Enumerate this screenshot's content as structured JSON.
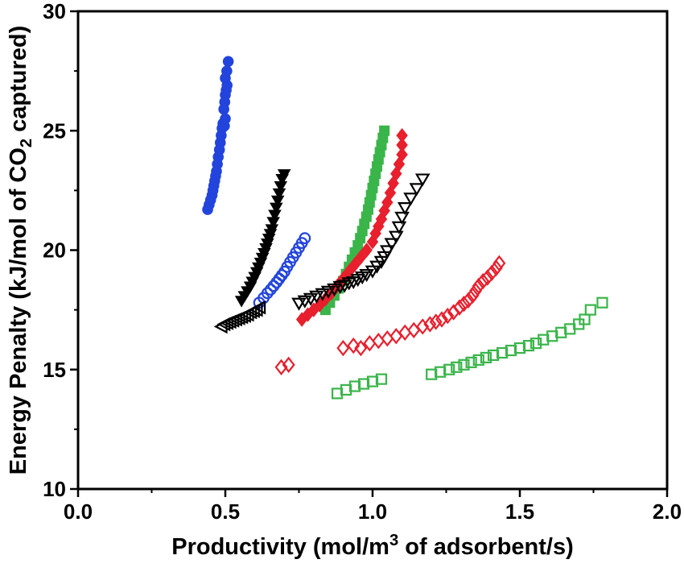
{
  "chart_data": {
    "type": "scatter",
    "title": "",
    "xlabel_parts": [
      {
        "t": "Productivity (mol/m"
      },
      {
        "t": "3",
        "sup": true
      },
      {
        "t": " of adsorbent/s)"
      }
    ],
    "ylabel_parts": [
      {
        "t": "Energy Penalty (kJ/mol of CO"
      },
      {
        "t": "2",
        "sub": true
      },
      {
        "t": " captured)"
      }
    ],
    "x_axis": {
      "min": 0.0,
      "max": 2.0,
      "major_ticks": [
        0.0,
        0.5,
        1.0,
        1.5,
        2.0
      ],
      "tick_labels": [
        "0.0",
        "0.5",
        "1.0",
        "1.5",
        "2.0"
      ],
      "minor_ticks": [
        0.25,
        0.75,
        1.25,
        1.75
      ]
    },
    "y_axis": {
      "min": 10,
      "max": 30,
      "major_ticks": [
        10,
        15,
        20,
        25,
        30
      ],
      "tick_labels": [
        "10",
        "15",
        "20",
        "25",
        "30"
      ],
      "minor_ticks": [
        12.5,
        17.5,
        22.5,
        27.5
      ]
    },
    "grid": false,
    "legend": "none",
    "frame": true,
    "colors": {
      "blue": "#2244dd",
      "green": "#3ab54a",
      "red": "#e81f2d",
      "black": "#000000"
    },
    "series": [
      {
        "name": "blue-filled-circles",
        "marker": "circle",
        "fill": "filled",
        "color_key": "blue",
        "points": [
          [
            0.44,
            21.7
          ],
          [
            0.445,
            21.9
          ],
          [
            0.45,
            22.1
          ],
          [
            0.455,
            22.3
          ],
          [
            0.458,
            22.5
          ],
          [
            0.461,
            22.7
          ],
          [
            0.464,
            22.9
          ],
          [
            0.467,
            23.1
          ],
          [
            0.47,
            23.3
          ],
          [
            0.473,
            23.6
          ],
          [
            0.476,
            23.9
          ],
          [
            0.48,
            24.2
          ],
          [
            0.483,
            24.5
          ],
          [
            0.486,
            24.8
          ],
          [
            0.489,
            25.1
          ],
          [
            0.492,
            25.3
          ],
          [
            0.497,
            25.2
          ],
          [
            0.5,
            25.5
          ],
          [
            0.495,
            25.9
          ],
          [
            0.498,
            26.2
          ],
          [
            0.5,
            26.5
          ],
          [
            0.503,
            26.7
          ],
          [
            0.506,
            26.9
          ],
          [
            0.5,
            27.2
          ],
          [
            0.505,
            27.5
          ],
          [
            0.51,
            27.9
          ]
        ]
      },
      {
        "name": "blue-open-circles",
        "marker": "circle",
        "fill": "open",
        "color_key": "blue",
        "points": [
          [
            0.615,
            17.8
          ],
          [
            0.63,
            18.0
          ],
          [
            0.643,
            18.2
          ],
          [
            0.654,
            18.35
          ],
          [
            0.664,
            18.5
          ],
          [
            0.674,
            18.65
          ],
          [
            0.683,
            18.8
          ],
          [
            0.692,
            18.95
          ],
          [
            0.701,
            19.1
          ],
          [
            0.71,
            19.3
          ],
          [
            0.72,
            19.5
          ],
          [
            0.73,
            19.7
          ],
          [
            0.74,
            19.9
          ],
          [
            0.75,
            20.1
          ],
          [
            0.76,
            20.3
          ],
          [
            0.77,
            20.5
          ]
        ]
      },
      {
        "name": "black-filled-down-triangles",
        "marker": "triangle-down",
        "fill": "filled",
        "color_key": "black",
        "points": [
          [
            0.555,
            17.9
          ],
          [
            0.565,
            18.1
          ],
          [
            0.575,
            18.3
          ],
          [
            0.585,
            18.5
          ],
          [
            0.592,
            18.7
          ],
          [
            0.6,
            18.9
          ],
          [
            0.607,
            19.1
          ],
          [
            0.613,
            19.3
          ],
          [
            0.62,
            19.5
          ],
          [
            0.626,
            19.7
          ],
          [
            0.632,
            19.9
          ],
          [
            0.638,
            20.1
          ],
          [
            0.643,
            20.3
          ],
          [
            0.648,
            20.5
          ],
          [
            0.653,
            20.7
          ],
          [
            0.658,
            20.9
          ],
          [
            0.663,
            21.2
          ],
          [
            0.668,
            21.5
          ],
          [
            0.673,
            21.8
          ],
          [
            0.678,
            22.1
          ],
          [
            0.683,
            22.4
          ],
          [
            0.688,
            22.7
          ],
          [
            0.693,
            23.0
          ],
          [
            0.7,
            23.2
          ]
        ]
      },
      {
        "name": "black-open-left-triangles",
        "marker": "triangle-left",
        "fill": "open",
        "color_key": "black",
        "points": [
          [
            0.49,
            16.8
          ],
          [
            0.5,
            16.9
          ],
          [
            0.51,
            16.95
          ],
          [
            0.52,
            17.0
          ],
          [
            0.53,
            17.05
          ],
          [
            0.54,
            17.1
          ],
          [
            0.55,
            17.15
          ],
          [
            0.56,
            17.2
          ],
          [
            0.57,
            17.25
          ],
          [
            0.58,
            17.3
          ],
          [
            0.59,
            17.4
          ],
          [
            0.6,
            17.45
          ],
          [
            0.61,
            17.5
          ],
          [
            0.62,
            17.6
          ]
        ]
      },
      {
        "name": "green-filled-squares",
        "marker": "square",
        "fill": "filled",
        "color_key": "green",
        "points": [
          [
            0.84,
            17.5
          ],
          [
            0.855,
            17.8
          ],
          [
            0.87,
            18.1
          ],
          [
            0.885,
            18.4
          ],
          [
            0.9,
            18.7
          ],
          [
            0.91,
            19.0
          ],
          [
            0.92,
            19.3
          ],
          [
            0.93,
            19.6
          ],
          [
            0.94,
            19.9
          ],
          [
            0.95,
            20.2
          ],
          [
            0.958,
            20.5
          ],
          [
            0.965,
            20.8
          ],
          [
            0.972,
            21.1
          ],
          [
            0.979,
            21.4
          ],
          [
            0.985,
            21.7
          ],
          [
            0.99,
            22.0
          ],
          [
            0.995,
            22.3
          ],
          [
            1.0,
            22.6
          ],
          [
            1.005,
            22.9
          ],
          [
            1.01,
            23.2
          ],
          [
            1.015,
            23.5
          ],
          [
            1.02,
            23.8
          ],
          [
            1.025,
            24.1
          ],
          [
            1.03,
            24.4
          ],
          [
            1.035,
            24.7
          ],
          [
            1.04,
            25.0
          ]
        ]
      },
      {
        "name": "red-filled-diamonds",
        "marker": "diamond",
        "fill": "filled",
        "color_key": "red",
        "points": [
          [
            0.76,
            17.1
          ],
          [
            0.78,
            17.3
          ],
          [
            0.8,
            17.5
          ],
          [
            0.82,
            17.7
          ],
          [
            0.84,
            17.95
          ],
          [
            0.86,
            18.2
          ],
          [
            0.88,
            18.5
          ],
          [
            0.9,
            18.8
          ],
          [
            0.92,
            19.1
          ],
          [
            0.94,
            19.4
          ],
          [
            0.96,
            19.7
          ],
          [
            0.98,
            20.0
          ],
          [
            1.0,
            20.35
          ],
          [
            1.01,
            20.7
          ],
          [
            1.02,
            21.0
          ],
          [
            1.03,
            21.3
          ],
          [
            1.04,
            21.65
          ],
          [
            1.05,
            22.0
          ],
          [
            1.06,
            22.4
          ],
          [
            1.07,
            22.8
          ],
          [
            1.08,
            23.2
          ],
          [
            1.09,
            23.6
          ],
          [
            1.1,
            24.0
          ],
          [
            1.1,
            24.4
          ],
          [
            1.1,
            24.8
          ]
        ]
      },
      {
        "name": "black-open-down-triangles",
        "marker": "triangle-down",
        "fill": "open",
        "color_key": "black",
        "points": [
          [
            0.75,
            17.8
          ],
          [
            0.77,
            17.9
          ],
          [
            0.79,
            18.0
          ],
          [
            0.81,
            18.1
          ],
          [
            0.83,
            18.2
          ],
          [
            0.85,
            18.3
          ],
          [
            0.87,
            18.4
          ],
          [
            0.89,
            18.5
          ],
          [
            0.905,
            18.55
          ],
          [
            0.92,
            18.65
          ],
          [
            0.935,
            18.7
          ],
          [
            0.95,
            18.8
          ],
          [
            0.965,
            18.9
          ],
          [
            0.98,
            19.0
          ],
          [
            1.0,
            19.15
          ],
          [
            1.015,
            19.35
          ],
          [
            1.03,
            19.55
          ],
          [
            1.04,
            19.75
          ],
          [
            1.05,
            20.0
          ],
          [
            1.065,
            20.3
          ],
          [
            1.08,
            20.6
          ],
          [
            1.09,
            21.0
          ],
          [
            1.1,
            21.4
          ],
          [
            1.11,
            21.8
          ],
          [
            1.13,
            22.2
          ],
          [
            1.15,
            22.6
          ],
          [
            1.17,
            23.0
          ]
        ]
      },
      {
        "name": "red-open-diamonds",
        "marker": "diamond",
        "fill": "open",
        "color_key": "red",
        "points": [
          [
            0.69,
            15.1
          ],
          [
            0.715,
            15.2
          ],
          [
            0.9,
            15.9
          ],
          [
            0.935,
            16.0
          ],
          [
            0.96,
            15.9
          ],
          [
            0.99,
            16.1
          ],
          [
            1.02,
            16.2
          ],
          [
            1.05,
            16.3
          ],
          [
            1.08,
            16.4
          ],
          [
            1.11,
            16.55
          ],
          [
            1.14,
            16.65
          ],
          [
            1.17,
            16.8
          ],
          [
            1.195,
            16.9
          ],
          [
            1.215,
            17.0
          ],
          [
            1.235,
            17.1
          ],
          [
            1.255,
            17.25
          ],
          [
            1.275,
            17.4
          ],
          [
            1.295,
            17.6
          ],
          [
            1.31,
            17.75
          ],
          [
            1.325,
            17.9
          ],
          [
            1.34,
            18.1
          ],
          [
            1.35,
            18.3
          ],
          [
            1.36,
            18.5
          ],
          [
            1.375,
            18.7
          ],
          [
            1.39,
            18.85
          ],
          [
            1.405,
            19.05
          ],
          [
            1.42,
            19.25
          ],
          [
            1.43,
            19.45
          ]
        ]
      },
      {
        "name": "green-open-squares",
        "marker": "square",
        "fill": "open",
        "color_key": "green",
        "points": [
          [
            0.88,
            14.0
          ],
          [
            0.91,
            14.15
          ],
          [
            0.94,
            14.3
          ],
          [
            0.97,
            14.4
          ],
          [
            1.0,
            14.5
          ],
          [
            1.03,
            14.6
          ],
          [
            1.2,
            14.8
          ],
          [
            1.23,
            14.9
          ],
          [
            1.26,
            15.0
          ],
          [
            1.285,
            15.1
          ],
          [
            1.31,
            15.2
          ],
          [
            1.335,
            15.3
          ],
          [
            1.36,
            15.4
          ],
          [
            1.385,
            15.5
          ],
          [
            1.41,
            15.6
          ],
          [
            1.44,
            15.7
          ],
          [
            1.47,
            15.8
          ],
          [
            1.5,
            15.9
          ],
          [
            1.53,
            16.0
          ],
          [
            1.555,
            16.1
          ],
          [
            1.58,
            16.25
          ],
          [
            1.61,
            16.4
          ],
          [
            1.64,
            16.55
          ],
          [
            1.67,
            16.7
          ],
          [
            1.7,
            16.9
          ],
          [
            1.72,
            17.1
          ],
          [
            1.74,
            17.5
          ],
          [
            1.78,
            17.8
          ]
        ]
      }
    ]
  }
}
